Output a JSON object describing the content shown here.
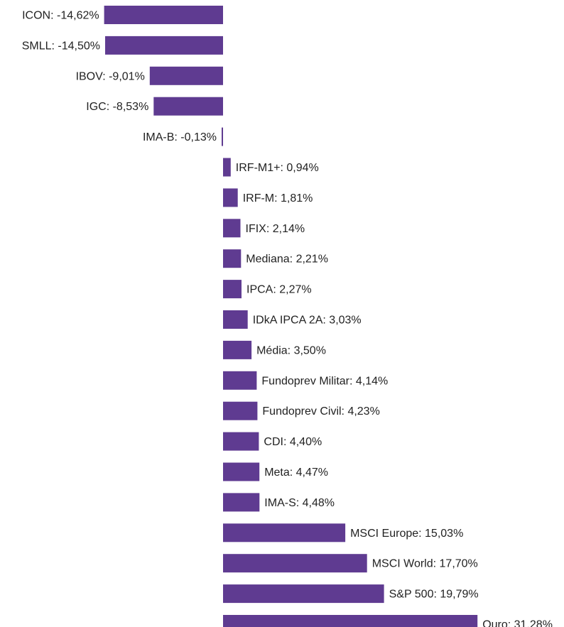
{
  "chart_data": {
    "type": "bar",
    "orientation": "horizontal",
    "title": "",
    "xlabel": "",
    "ylabel": "",
    "grid": false,
    "bar_color": "#5f3b91",
    "xlim": [
      -14.62,
      31.28
    ],
    "categories": [
      "ICON",
      "SMLL",
      "IBOV",
      "IGC",
      "IMA-B",
      "IRF-M1+",
      "IRF-M",
      "IFIX",
      "Mediana",
      "IPCA",
      "IDkA IPCA 2A",
      "Média",
      "Fundoprev Militar",
      "Fundoprev Civil",
      "CDI",
      "Meta",
      "IMA-S",
      "MSCI Europe",
      "MSCI World",
      "S&P 500",
      "Ouro"
    ],
    "values": [
      -14.62,
      -14.5,
      -9.01,
      -8.53,
      -0.13,
      0.94,
      1.81,
      2.14,
      2.21,
      2.27,
      3.03,
      3.5,
      4.14,
      4.23,
      4.4,
      4.47,
      4.48,
      15.03,
      17.7,
      19.79,
      31.28
    ],
    "labels": [
      "ICON: -14,62%",
      "SMLL: -14,50%",
      "IBOV: -9,01%",
      "IGC: -8,53%",
      "IMA-B: -0,13%",
      "IRF-M1+: 0,94%",
      "IRF-M: 1,81%",
      "IFIX: 2,14%",
      "Mediana: 2,21%",
      "IPCA: 2,27%",
      "IDkA IPCA 2A: 3,03%",
      "Média: 3,50%",
      "Fundoprev Militar: 4,14%",
      "Fundoprev Civil: 4,23%",
      "CDI: 4,40%",
      "Meta: 4,47%",
      "IMA-S: 4,48%",
      "MSCI Europe: 15,03%",
      "MSCI World: 17,70%",
      "S&P 500: 19,79%",
      "Ouro: 31,28%"
    ]
  }
}
